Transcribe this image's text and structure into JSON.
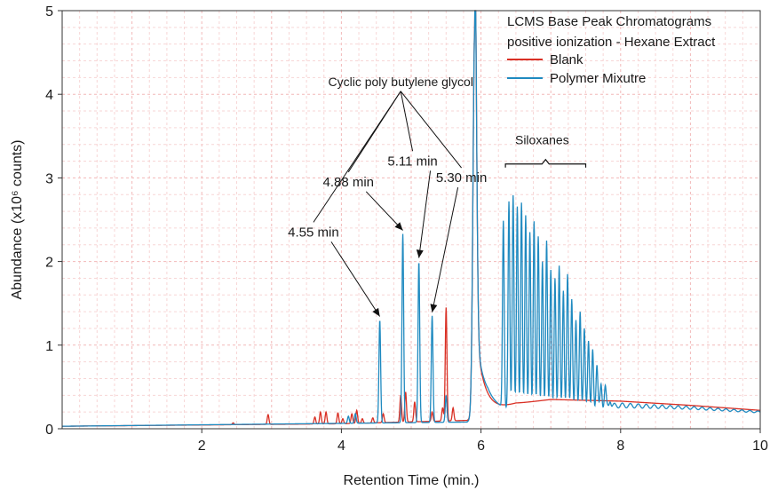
{
  "chart_data": {
    "type": "line",
    "xlabel": "Retention Time (min.)",
    "ylabel": "Abundance (x10⁶ counts)",
    "xlim": [
      0,
      10
    ],
    "ylim": [
      0,
      5
    ],
    "x_ticks": [
      2,
      4,
      6,
      8,
      10
    ],
    "y_ticks": [
      0,
      1,
      2,
      3,
      4,
      5
    ],
    "grid": "minor, dashed, light red",
    "legend_placement": "top-right",
    "legend": {
      "title_line1": "LCMS Base Peak Chromatograms",
      "title_line2": "positive ionization - Hexane Extract"
    },
    "series": [
      {
        "name": "Blank",
        "color": "#d93025",
        "baseline": [
          [
            0,
            0.03
          ],
          [
            4,
            0.06
          ],
          [
            5.8,
            0.1
          ],
          [
            6.5,
            0.3
          ],
          [
            7,
            0.35
          ],
          [
            8,
            0.33
          ],
          [
            9,
            0.28
          ],
          [
            10,
            0.22
          ]
        ],
        "peaks": [
          [
            2.45,
            0.07
          ],
          [
            2.95,
            0.17
          ],
          [
            3.62,
            0.14
          ],
          [
            3.7,
            0.2
          ],
          [
            3.78,
            0.2
          ],
          [
            3.95,
            0.19
          ],
          [
            4.02,
            0.12
          ],
          [
            4.15,
            0.18
          ],
          [
            4.22,
            0.22
          ],
          [
            4.3,
            0.12
          ],
          [
            4.45,
            0.13
          ],
          [
            4.6,
            0.18
          ],
          [
            4.85,
            0.4
          ],
          [
            4.92,
            0.44
          ],
          [
            5.05,
            0.32
          ],
          [
            5.3,
            0.2
          ],
          [
            5.45,
            0.25
          ],
          [
            5.5,
            1.45
          ],
          [
            5.6,
            0.25
          ],
          [
            5.91,
            4.78
          ],
          [
            6.5,
            0.3
          ],
          [
            6.7,
            0.25
          ]
        ]
      },
      {
        "name": "Polymer Mixutre",
        "color": "#1f8ac0",
        "baseline": [
          [
            0,
            0.03
          ],
          [
            5.8,
            0.08
          ],
          [
            6.1,
            0.25
          ],
          [
            6.5,
            0.2
          ],
          [
            7,
            0.22
          ],
          [
            8,
            0.28
          ],
          [
            9,
            0.25
          ],
          [
            10,
            0.2
          ]
        ],
        "peaks": [
          [
            4.1,
            0.15
          ],
          [
            4.2,
            0.18
          ],
          [
            4.55,
            1.3
          ],
          [
            4.88,
            2.33
          ],
          [
            5.11,
            2.0
          ],
          [
            5.3,
            1.35
          ],
          [
            5.5,
            0.4
          ],
          [
            5.91,
            4.74
          ],
          [
            6.32,
            2.45
          ],
          [
            6.4,
            2.7
          ],
          [
            6.46,
            2.78
          ],
          [
            6.52,
            2.65
          ],
          [
            6.58,
            2.7
          ],
          [
            6.64,
            2.55
          ],
          [
            6.7,
            2.35
          ],
          [
            6.76,
            2.48
          ],
          [
            6.82,
            2.3
          ],
          [
            6.88,
            2.0
          ],
          [
            6.94,
            2.25
          ],
          [
            7.0,
            1.9
          ],
          [
            7.06,
            1.8
          ],
          [
            7.12,
            1.95
          ],
          [
            7.18,
            1.65
          ],
          [
            7.24,
            1.85
          ],
          [
            7.3,
            1.55
          ],
          [
            7.36,
            1.3
          ],
          [
            7.42,
            1.4
          ],
          [
            7.48,
            1.2
          ],
          [
            7.54,
            1.05
          ],
          [
            7.6,
            0.95
          ],
          [
            7.66,
            0.75
          ],
          [
            7.72,
            0.55
          ],
          [
            7.78,
            0.5
          ],
          [
            7.85,
            0.35
          ]
        ]
      }
    ],
    "annotations": [
      {
        "id": "cyclic",
        "text": "Cyclic poly butylene glycol",
        "x": 4.85,
        "y": 4.1
      },
      {
        "id": "t455",
        "text": "4.55 min",
        "x": 3.6,
        "y": 2.3,
        "peak": [
          4.55,
          1.3
        ]
      },
      {
        "id": "t488",
        "text": "4.88 min",
        "x": 4.1,
        "y": 2.9,
        "peak": [
          4.88,
          2.33
        ]
      },
      {
        "id": "t511",
        "text": "5.11 min",
        "x": 5.02,
        "y": 3.15,
        "peak": [
          5.11,
          2.0
        ]
      },
      {
        "id": "t530",
        "text": "5.30 min",
        "x": 5.72,
        "y": 2.95,
        "peak": [
          5.3,
          1.35
        ]
      },
      {
        "id": "silox",
        "text": "Siloxanes",
        "x": 6.9,
        "y": 3.4,
        "span": [
          6.35,
          7.5
        ]
      }
    ]
  }
}
